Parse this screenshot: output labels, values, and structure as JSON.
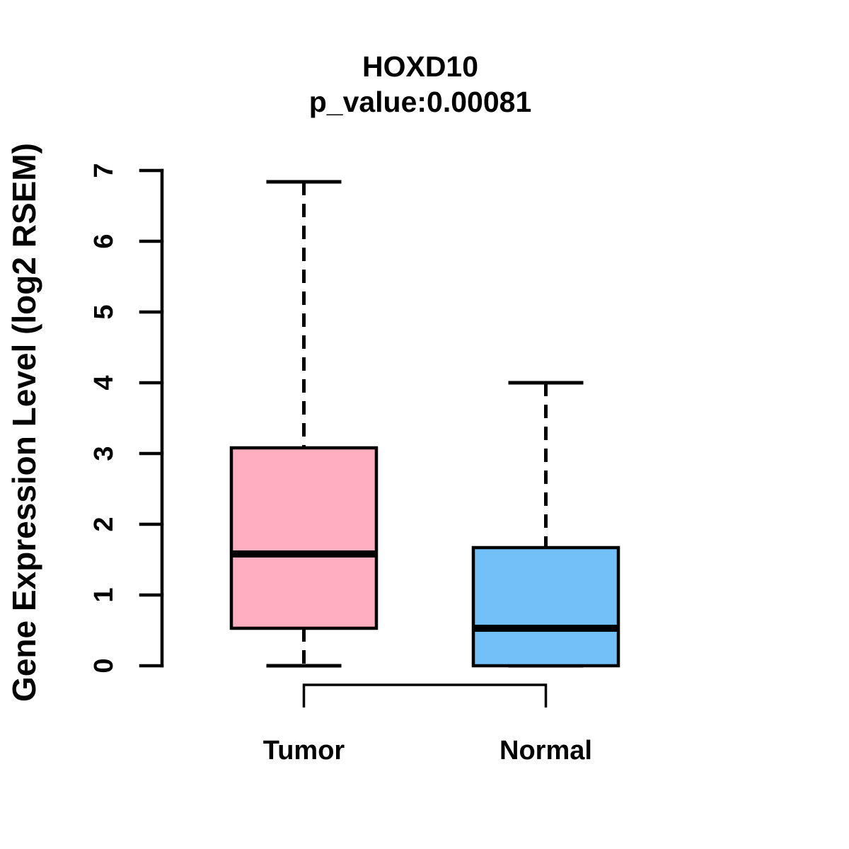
{
  "chart_data": {
    "type": "boxplot",
    "title": "HOXD10",
    "subtitle": "p_value:0.00081",
    "ylabel": "Gene Expression Level (log2 RSEM)",
    "xlabel": "",
    "categories": [
      "Tumor",
      "Normal"
    ],
    "ylim": [
      0,
      7
    ],
    "yticks": [
      0,
      1,
      2,
      3,
      4,
      5,
      6,
      7
    ],
    "grid": false,
    "legend": "none",
    "series": [
      {
        "name": "Tumor",
        "fill_color": "#FFAEC0",
        "whisker_low": 0,
        "q1": 0.53,
        "median": 1.58,
        "q3": 3.08,
        "whisker_high": 6.84
      },
      {
        "name": "Normal",
        "fill_color": "#73BFF7",
        "whisker_low": 0,
        "q1": 0,
        "median": 0.53,
        "q3": 1.67,
        "whisker_high": 4.0
      }
    ],
    "comparison_bracket": {
      "from": "Tumor",
      "to": "Normal"
    },
    "colors": {
      "stroke": "#000000",
      "background": "#FFFFFF",
      "tumor_fill": "#FFAEC0",
      "normal_fill": "#73BFF7"
    }
  }
}
